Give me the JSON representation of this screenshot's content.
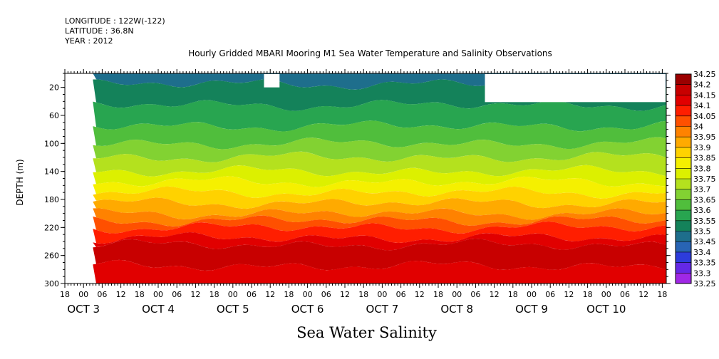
{
  "header": {
    "longitude": "LONGITUDE : 122W(-122)",
    "latitude": "LATITUDE : 36.8N",
    "year": "YEAR : 2012"
  },
  "chart_data": {
    "type": "heatmap",
    "title": "Hourly Gridded MBARI Mooring M1 Sea Water Temperature and Salinity Observations",
    "bottom_title": "Sea Water Salinity",
    "ylabel": "DEPTH (m)",
    "ylim": [
      300,
      0
    ],
    "yticks": [
      20,
      60,
      100,
      140,
      180,
      220,
      260,
      300
    ],
    "time_ticks_hours": [
      "18",
      "00",
      "06",
      "12",
      "18",
      "00",
      "06",
      "12",
      "18",
      "00",
      "06",
      "12",
      "18",
      "00",
      "06",
      "12",
      "18",
      "00",
      "06",
      "12",
      "18",
      "00",
      "06",
      "12",
      "18",
      "00",
      "06",
      "12",
      "18",
      "00",
      "06",
      "12",
      "18"
    ],
    "date_labels": [
      "OCT  3",
      "OCT  4",
      "OCT  5",
      "OCT  6",
      "OCT  7",
      "OCT  8",
      "OCT  9",
      "OCT 10"
    ],
    "colorbar": {
      "levels": [
        "34.25",
        "34.2",
        "34.15",
        "34.1",
        "34.05",
        "34",
        "33.95",
        "33.9",
        "33.85",
        "33.8",
        "33.75",
        "33.7",
        "33.65",
        "33.6",
        "33.55",
        "33.5",
        "33.45",
        "33.4",
        "33.35",
        "33.3",
        "33.25"
      ],
      "colors": [
        "#9b0000",
        "#c80000",
        "#e10000",
        "#ff1e00",
        "#ff5000",
        "#ff8200",
        "#ffaa00",
        "#ffd200",
        "#f5f000",
        "#dcf000",
        "#b4e11e",
        "#82d232",
        "#50be3c",
        "#28a550",
        "#14825a",
        "#1e6e8c",
        "#2864b4",
        "#2d3cdc",
        "#6428e6",
        "#a028e6"
      ]
    },
    "depth_bands": [
      {
        "from": 0,
        "to": 15,
        "value": 33.47
      },
      {
        "from": 15,
        "to": 45,
        "value": 33.52
      },
      {
        "from": 45,
        "to": 75,
        "value": 33.57
      },
      {
        "from": 75,
        "to": 100,
        "value": 33.62
      },
      {
        "from": 100,
        "to": 120,
        "value": 33.67
      },
      {
        "from": 120,
        "to": 140,
        "value": 33.72
      },
      {
        "from": 140,
        "to": 155,
        "value": 33.77
      },
      {
        "from": 155,
        "to": 170,
        "value": 33.82
      },
      {
        "from": 170,
        "to": 185,
        "value": 33.87
      },
      {
        "from": 185,
        "to": 200,
        "value": 33.92
      },
      {
        "from": 200,
        "to": 210,
        "value": 33.97
      },
      {
        "from": 210,
        "to": 220,
        "value": 34.02
      },
      {
        "from": 220,
        "to": 235,
        "value": 34.07
      },
      {
        "from": 235,
        "to": 245,
        "value": 34.12
      },
      {
        "from": 245,
        "to": 275,
        "value": 34.17
      },
      {
        "from": 275,
        "to": 300,
        "value": 34.12
      }
    ]
  }
}
